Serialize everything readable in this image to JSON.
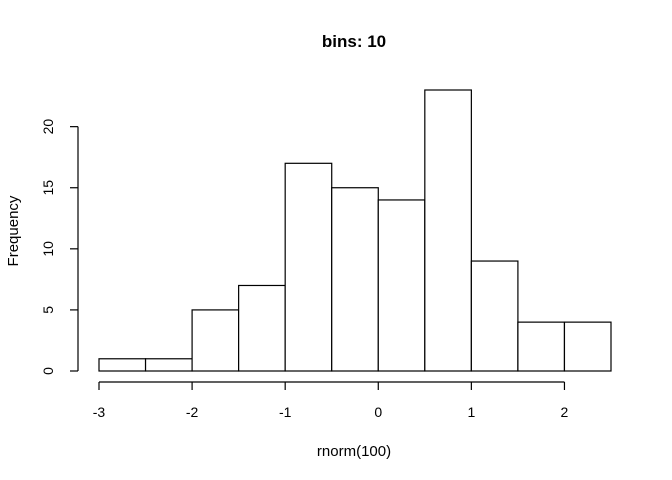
{
  "chart_data": {
    "type": "bar",
    "title": "bins: 10",
    "xlabel": "rnorm(100)",
    "ylabel": "Frequency",
    "bin_edges": [
      -3,
      -2.5,
      -2,
      -1.5,
      -1,
      -0.5,
      0,
      0.5,
      1,
      1.5,
      2,
      2.5
    ],
    "values": [
      1,
      1,
      5,
      7,
      17,
      15,
      14,
      23,
      9,
      4,
      4
    ],
    "xlim": [
      -3,
      2.5
    ],
    "ylim": [
      0,
      23
    ],
    "x_ticks": [
      -3,
      -2,
      -1,
      0,
      1,
      2
    ],
    "x_tick_labels": [
      "-3",
      "-2",
      "-1",
      "0",
      "1",
      "2"
    ],
    "y_ticks": [
      0,
      5,
      10,
      15,
      20
    ],
    "y_tick_labels": [
      "0",
      "5",
      "10",
      "15",
      "20"
    ],
    "grid": false
  }
}
